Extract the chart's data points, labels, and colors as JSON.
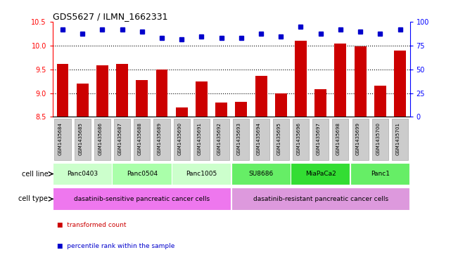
{
  "title": "GDS5627 / ILMN_1662331",
  "samples": [
    "GSM1435684",
    "GSM1435685",
    "GSM1435686",
    "GSM1435687",
    "GSM1435688",
    "GSM1435689",
    "GSM1435690",
    "GSM1435691",
    "GSM1435692",
    "GSM1435693",
    "GSM1435694",
    "GSM1435695",
    "GSM1435696",
    "GSM1435697",
    "GSM1435698",
    "GSM1435699",
    "GSM1435700",
    "GSM1435701"
  ],
  "bar_values": [
    9.62,
    9.2,
    9.58,
    9.62,
    9.27,
    9.5,
    8.7,
    9.25,
    8.8,
    8.82,
    9.37,
    8.99,
    10.1,
    9.08,
    10.05,
    9.98,
    9.15,
    9.9
  ],
  "dot_values": [
    92,
    88,
    92,
    92,
    90,
    83,
    82,
    85,
    83,
    83,
    88,
    85,
    95,
    88,
    92,
    90,
    88,
    92
  ],
  "ylim_left": [
    8.5,
    10.5
  ],
  "ylim_right": [
    0,
    100
  ],
  "yticks_left": [
    8.5,
    9.0,
    9.5,
    10.0,
    10.5
  ],
  "yticks_right": [
    0,
    25,
    50,
    75,
    100
  ],
  "bar_color": "#cc0000",
  "dot_color": "#0000cc",
  "cell_lines": [
    {
      "label": "Panc0403",
      "start": 0,
      "end": 3,
      "color": "#ccffcc"
    },
    {
      "label": "Panc0504",
      "start": 3,
      "end": 6,
      "color": "#aaffaa"
    },
    {
      "label": "Panc1005",
      "start": 6,
      "end": 9,
      "color": "#ccffcc"
    },
    {
      "label": "SU8686",
      "start": 9,
      "end": 12,
      "color": "#66ee66"
    },
    {
      "label": "MiaPaCa2",
      "start": 12,
      "end": 15,
      "color": "#33dd33"
    },
    {
      "label": "Panc1",
      "start": 15,
      "end": 18,
      "color": "#66ee66"
    }
  ],
  "cell_types": [
    {
      "label": "dasatinib-sensitive pancreatic cancer cells",
      "start": 0,
      "end": 9,
      "color": "#ee77ee"
    },
    {
      "label": "dasatinib-resistant pancreatic cancer cells",
      "start": 9,
      "end": 18,
      "color": "#dd99dd"
    }
  ],
  "legend_items": [
    {
      "label": "transformed count",
      "color": "#cc0000"
    },
    {
      "label": "percentile rank within the sample",
      "color": "#0000cc"
    }
  ],
  "sample_box_color": "#cccccc",
  "sample_box_edge": "#aaaaaa",
  "background_color": "#ffffff",
  "row_label_cell_line": "cell line",
  "row_label_cell_type": "cell type"
}
